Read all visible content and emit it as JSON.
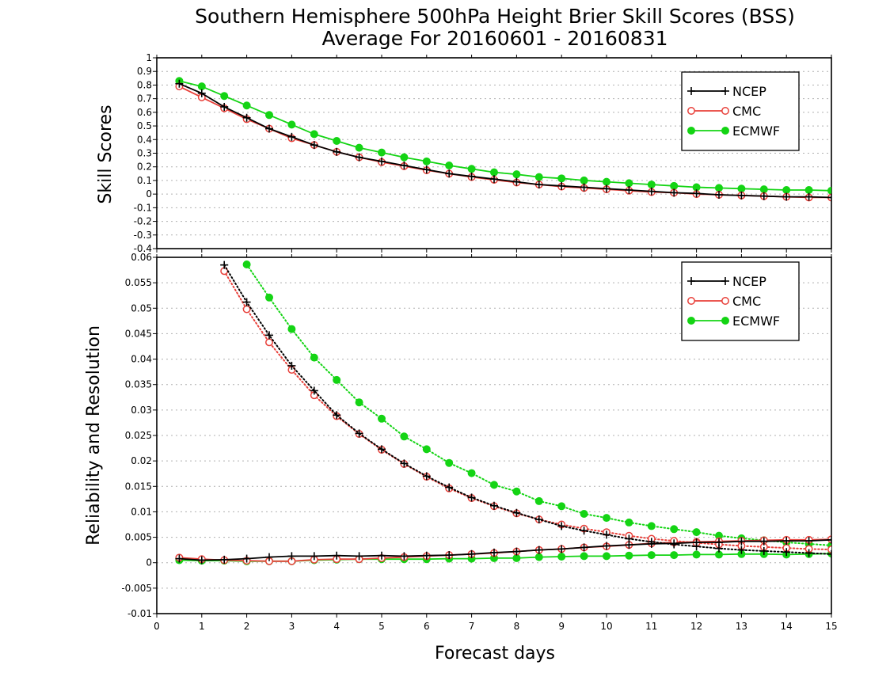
{
  "title": {
    "line1": "Southern Hemisphere 500hPa Height Brier Skill Scores (BSS)",
    "line2": "Average For 20160601 - 20160831"
  },
  "colors": {
    "NCEP": "#000000",
    "CMC": "#e8403a",
    "ECMWF": "#14d414",
    "grid": "#b0b0b0"
  },
  "chart_data": [
    {
      "type": "line",
      "ylabel": "Skill Scores",
      "xlabel": "",
      "xlim": [
        0,
        15
      ],
      "ylim": [
        -0.4,
        1
      ],
      "grid": true,
      "legend_position": "top-right",
      "y_ticks": [
        "-0.4",
        "-0.3",
        "-0.2",
        "-0.1",
        "0",
        "0.1",
        "0.2",
        "0.3",
        "0.4",
        "0.5",
        "0.6",
        "0.7",
        "0.8",
        "0.9",
        "1"
      ],
      "x": [
        0.5,
        1,
        1.5,
        2,
        2.5,
        3,
        3.5,
        4,
        4.5,
        5,
        5.5,
        6,
        6.5,
        7,
        7.5,
        8,
        8.5,
        9,
        9.5,
        10,
        10.5,
        11,
        11.5,
        12,
        12.5,
        13,
        13.5,
        14,
        14.5,
        15
      ],
      "series": [
        {
          "name": "NCEP",
          "marker": "plus",
          "line": "solid",
          "values": [
            0.81,
            0.74,
            0.64,
            0.56,
            0.48,
            0.42,
            0.36,
            0.31,
            0.27,
            0.24,
            0.21,
            0.18,
            0.15,
            0.13,
            0.11,
            0.09,
            0.07,
            0.06,
            0.05,
            0.04,
            0.03,
            0.02,
            0.01,
            0.005,
            -0.005,
            -0.01,
            -0.015,
            -0.02,
            -0.02,
            -0.025
          ]
        },
        {
          "name": "CMC",
          "marker": "circle-open",
          "line": "solid",
          "values": [
            0.79,
            0.71,
            0.63,
            0.55,
            0.48,
            0.41,
            0.36,
            0.31,
            0.27,
            0.235,
            0.205,
            0.175,
            0.15,
            0.125,
            0.105,
            0.085,
            0.07,
            0.055,
            0.045,
            0.035,
            0.025,
            0.015,
            0.01,
            0.0,
            -0.005,
            -0.01,
            -0.015,
            -0.02,
            -0.025,
            -0.025
          ]
        },
        {
          "name": "ECMWF",
          "marker": "circle-filled",
          "line": "solid",
          "values": [
            0.83,
            0.79,
            0.72,
            0.65,
            0.58,
            0.51,
            0.44,
            0.39,
            0.34,
            0.305,
            0.27,
            0.24,
            0.21,
            0.185,
            0.16,
            0.145,
            0.125,
            0.115,
            0.1,
            0.09,
            0.08,
            0.07,
            0.06,
            0.05,
            0.045,
            0.04,
            0.035,
            0.03,
            0.03,
            0.025
          ]
        }
      ]
    },
    {
      "type": "line",
      "ylabel": "Reliability and Resolution",
      "xlabel": "Forecast days",
      "xlim": [
        0,
        15
      ],
      "ylim": [
        -0.01,
        0.06
      ],
      "grid": true,
      "legend_position": "top-right",
      "y_ticks": [
        "-0.01",
        "-0.005",
        "0",
        "0.005",
        "0.01",
        "0.015",
        "0.02",
        "0.025",
        "0.03",
        "0.035",
        "0.04",
        "0.045",
        "0.05",
        "0.055",
        "0.06"
      ],
      "x_ticks": [
        "0",
        "1",
        "2",
        "3",
        "4",
        "5",
        "6",
        "7",
        "8",
        "9",
        "10",
        "11",
        "12",
        "13",
        "14",
        "15"
      ],
      "x": [
        0.5,
        1,
        1.5,
        2,
        2.5,
        3,
        3.5,
        4,
        4.5,
        5,
        5.5,
        6,
        6.5,
        7,
        7.5,
        8,
        8.5,
        9,
        9.5,
        10,
        10.5,
        11,
        11.5,
        12,
        12.5,
        13,
        13.5,
        14,
        14.5,
        15
      ],
      "series": [
        {
          "name": "NCEP",
          "marker": "plus",
          "line": "solid",
          "component": "reliability",
          "values": [
            0.0008,
            0.0005,
            0.0006,
            0.0008,
            0.0011,
            0.0013,
            0.0013,
            0.0014,
            0.0013,
            0.0014,
            0.0013,
            0.0014,
            0.0015,
            0.0017,
            0.002,
            0.0022,
            0.0025,
            0.0027,
            0.003,
            0.0033,
            0.0035,
            0.0037,
            0.0038,
            0.004,
            0.004,
            0.0042,
            0.0042,
            0.0043,
            0.0043,
            0.0045
          ]
        },
        {
          "name": "CMC",
          "marker": "circle-open",
          "line": "solid",
          "component": "reliability",
          "values": [
            0.001,
            0.0007,
            0.0005,
            0.0004,
            0.0003,
            0.0003,
            0.0006,
            0.0007,
            0.0007,
            0.0009,
            0.0011,
            0.0013,
            0.0015,
            0.0017,
            0.0019,
            0.0022,
            0.0025,
            0.0027,
            0.003,
            0.0032,
            0.0035,
            0.0038,
            0.004,
            0.0041,
            0.0042,
            0.0043,
            0.0044,
            0.0045,
            0.0045,
            0.0046
          ]
        },
        {
          "name": "ECMWF",
          "marker": "circle-filled",
          "line": "solid",
          "component": "reliability",
          "values": [
            0.0005,
            0.0004,
            0.0004,
            0.0003,
            0.0003,
            0.0003,
            0.0005,
            0.0006,
            0.0007,
            0.0007,
            0.0007,
            0.0007,
            0.0008,
            0.0008,
            0.0009,
            0.0009,
            0.0011,
            0.0012,
            0.0013,
            0.0013,
            0.0014,
            0.0015,
            0.0015,
            0.0016,
            0.0016,
            0.0017,
            0.0017,
            0.0016,
            0.0017,
            0.0018
          ]
        },
        {
          "name": "NCEP",
          "marker": "plus",
          "line": "dotted",
          "component": "resolution",
          "values": [
            null,
            null,
            0.0585,
            0.0512,
            0.0447,
            0.0387,
            0.0338,
            0.029,
            0.0254,
            0.0223,
            0.0195,
            0.017,
            0.0148,
            0.0128,
            0.0112,
            0.0098,
            0.0085,
            0.0072,
            0.0063,
            0.0055,
            0.0047,
            0.0041,
            0.0036,
            0.0032,
            0.0028,
            0.0025,
            0.0023,
            0.0021,
            0.0019,
            0.0017
          ]
        },
        {
          "name": "CMC",
          "marker": "circle-open",
          "line": "dotted",
          "component": "resolution",
          "values": [
            null,
            null,
            0.0573,
            0.0498,
            0.0433,
            0.0379,
            0.0329,
            0.0288,
            0.0253,
            0.0222,
            0.0194,
            0.0169,
            0.0146,
            0.0127,
            0.0111,
            0.0097,
            0.0085,
            0.0075,
            0.0067,
            0.006,
            0.0053,
            0.0047,
            0.0043,
            0.0039,
            0.0036,
            0.0033,
            0.0031,
            0.0029,
            0.0027,
            0.0026
          ]
        },
        {
          "name": "ECMWF",
          "marker": "circle-filled",
          "line": "dotted",
          "component": "resolution",
          "values": [
            null,
            null,
            null,
            0.0586,
            0.0521,
            0.0459,
            0.0403,
            0.0359,
            0.0315,
            0.0283,
            0.0248,
            0.0223,
            0.0196,
            0.0176,
            0.0153,
            0.014,
            0.0121,
            0.0111,
            0.0096,
            0.0088,
            0.0079,
            0.0072,
            0.0066,
            0.006,
            0.0053,
            0.0048,
            0.0044,
            0.004,
            0.0037,
            0.0034
          ]
        }
      ]
    }
  ]
}
